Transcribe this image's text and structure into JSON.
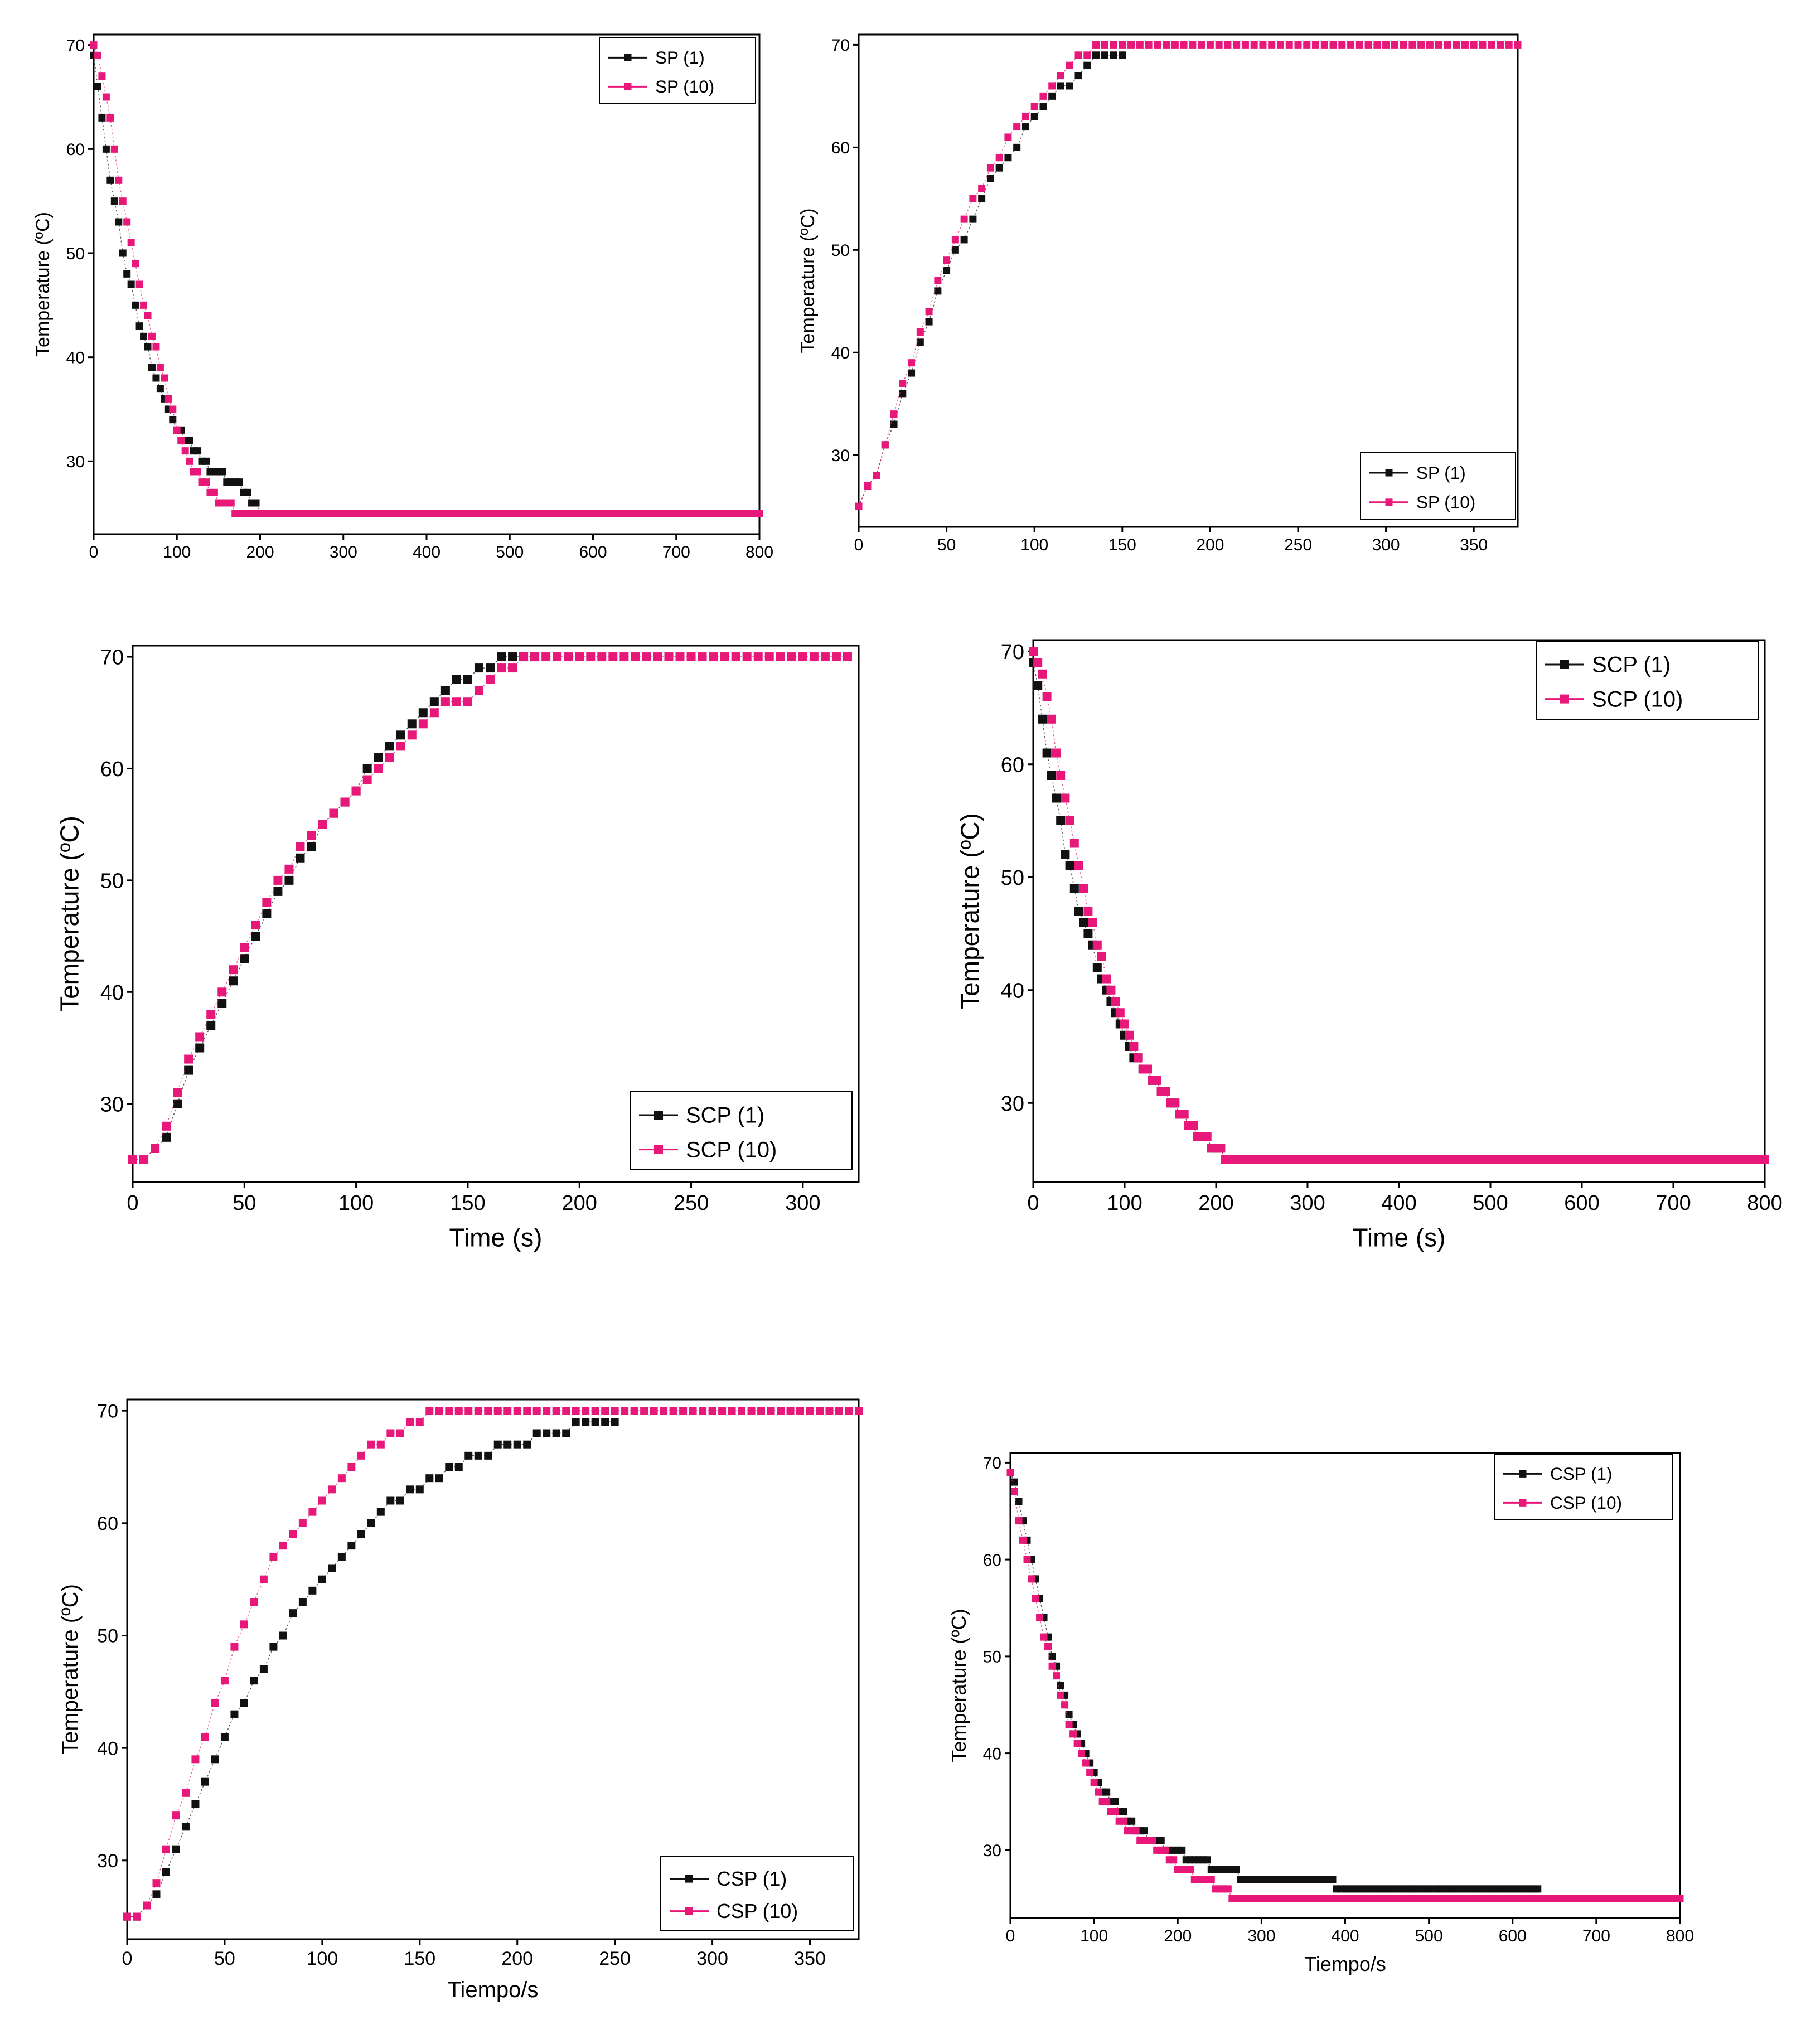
{
  "colors": {
    "black_series": "#111111",
    "pink_series": "#e8187a",
    "axis": "#000000",
    "plot_bg": "#ffffff"
  },
  "chart_data": [
    {
      "type": "scatter",
      "ylabel": "Temperature (ºC)",
      "xlabel": "",
      "xlim": [
        0,
        800
      ],
      "ylim": [
        23,
        71
      ],
      "xticks": [
        0,
        100,
        200,
        300,
        400,
        500,
        600,
        700,
        800
      ],
      "yticks": [
        30,
        40,
        50,
        60,
        70
      ],
      "legend_position": "top-right",
      "series": [
        {
          "name": "SP (1)",
          "color": "#111111",
          "step": 5,
          "hold_until": 800,
          "x": [
            0,
            5,
            10,
            15,
            20,
            25,
            30,
            35,
            40,
            45,
            50,
            55,
            60,
            70,
            80,
            90,
            100,
            110,
            120,
            130,
            140,
            150,
            160,
            170,
            180,
            190,
            200
          ],
          "y": [
            69,
            66,
            63,
            60,
            57,
            55,
            53,
            50,
            48,
            47,
            45,
            43,
            42,
            39,
            37,
            35,
            33,
            32,
            31,
            30,
            29,
            29,
            28,
            28,
            27,
            26,
            25
          ]
        },
        {
          "name": "SP (10)",
          "color": "#e8187a",
          "step": 5,
          "hold_until": 800,
          "x": [
            0,
            5,
            10,
            15,
            20,
            25,
            30,
            40,
            50,
            60,
            70,
            80,
            90,
            100,
            110,
            120,
            130,
            140,
            150,
            160,
            170
          ],
          "y": [
            70,
            69,
            67,
            65,
            63,
            60,
            57,
            53,
            49,
            45,
            42,
            39,
            36,
            33,
            31,
            29,
            28,
            27,
            26,
            26,
            25
          ]
        }
      ]
    },
    {
      "type": "scatter",
      "ylabel": "Temperature (ºC)",
      "xlabel": "",
      "xlim": [
        0,
        375
      ],
      "ylim": [
        23,
        71
      ],
      "xticks": [
        0,
        50,
        100,
        150,
        200,
        250,
        300,
        350
      ],
      "yticks": [
        30,
        40,
        50,
        60,
        70
      ],
      "legend_position": "bottom-right",
      "series": [
        {
          "name": "SP (1)",
          "color": "#111111",
          "step": 5,
          "hold_until": 150,
          "x": [
            0,
            10,
            20,
            30,
            40,
            50,
            60,
            70,
            80,
            90,
            100,
            110,
            120,
            130,
            140,
            150
          ],
          "y": [
            25,
            28,
            33,
            38,
            43,
            48,
            51,
            55,
            58,
            60,
            63,
            65,
            66,
            68,
            69,
            69
          ]
        },
        {
          "name": "SP (10)",
          "color": "#e8187a",
          "step": 5,
          "hold_until": 375,
          "x": [
            0,
            10,
            20,
            30,
            40,
            50,
            60,
            70,
            80,
            90,
            100,
            110,
            120,
            130,
            140
          ],
          "y": [
            25,
            28,
            34,
            39,
            44,
            49,
            53,
            56,
            59,
            62,
            64,
            66,
            68,
            69,
            70
          ]
        }
      ]
    },
    {
      "type": "scatter",
      "ylabel": "Temperature (ºC)",
      "xlabel": "Time (s)",
      "xlim": [
        0,
        325
      ],
      "ylim": [
        23,
        71
      ],
      "xticks": [
        0,
        50,
        100,
        150,
        200,
        250,
        300
      ],
      "yticks": [
        30,
        40,
        50,
        60,
        70
      ],
      "legend_position": "bottom-right",
      "series": [
        {
          "name": "SCP (1)",
          "color": "#111111",
          "step": 5,
          "hold_until": 180,
          "x": [
            0,
            5,
            10,
            15,
            20,
            30,
            40,
            50,
            60,
            70,
            80,
            90,
            100,
            110,
            120,
            130,
            140,
            150,
            160,
            170,
            180
          ],
          "y": [
            25,
            25,
            26,
            27,
            30,
            35,
            39,
            43,
            47,
            50,
            53,
            56,
            58,
            61,
            63,
            65,
            67,
            68,
            69,
            70,
            70
          ]
        },
        {
          "name": "SCP (10)",
          "color": "#e8187a",
          "step": 5,
          "hold_until": 320,
          "x": [
            0,
            5,
            10,
            15,
            20,
            30,
            40,
            50,
            60,
            70,
            80,
            90,
            100,
            110,
            120,
            130,
            140,
            150,
            160,
            170,
            180
          ],
          "y": [
            25,
            25,
            26,
            28,
            31,
            36,
            40,
            44,
            48,
            51,
            54,
            56,
            58,
            60,
            62,
            64,
            66,
            66,
            68,
            69,
            70
          ]
        }
      ]
    },
    {
      "type": "scatter",
      "ylabel": "Temperature (ºC)",
      "xlabel": "Time (s)",
      "xlim": [
        0,
        800
      ],
      "ylim": [
        23,
        71
      ],
      "xticks": [
        0,
        100,
        200,
        300,
        400,
        500,
        600,
        700,
        800
      ],
      "yticks": [
        30,
        40,
        50,
        60,
        70
      ],
      "legend_position": "top-right",
      "series": [
        {
          "name": "SCP (1)",
          "color": "#111111",
          "step": 5,
          "hold_until": 800,
          "x": [
            0,
            5,
            10,
            15,
            20,
            25,
            30,
            35,
            40,
            45,
            50,
            60,
            70,
            80,
            90,
            100,
            110,
            120,
            140,
            160,
            180,
            200,
            210
          ],
          "y": [
            69,
            67,
            64,
            61,
            59,
            57,
            55,
            52,
            51,
            49,
            47,
            45,
            42,
            40,
            38,
            36,
            34,
            33,
            31,
            29,
            27,
            26,
            25
          ]
        },
        {
          "name": "SCP (10)",
          "color": "#e8187a",
          "step": 5,
          "hold_until": 800,
          "x": [
            0,
            5,
            10,
            15,
            20,
            25,
            30,
            35,
            40,
            45,
            50,
            60,
            70,
            80,
            90,
            100,
            110,
            120,
            140,
            160,
            180,
            200,
            210
          ],
          "y": [
            70,
            69,
            68,
            66,
            64,
            61,
            59,
            57,
            55,
            53,
            51,
            47,
            44,
            41,
            39,
            37,
            35,
            33,
            31,
            29,
            27,
            26,
            25
          ]
        }
      ]
    },
    {
      "type": "scatter",
      "ylabel": "Temperature (ºC)",
      "xlabel": "Tiempo/s",
      "xlim": [
        0,
        375
      ],
      "ylim": [
        23,
        71
      ],
      "xticks": [
        0,
        50,
        100,
        150,
        200,
        250,
        300,
        350
      ],
      "yticks": [
        30,
        40,
        50,
        60,
        70
      ],
      "legend_position": "bottom-right",
      "series": [
        {
          "name": "CSP (1)",
          "color": "#111111",
          "step": 5,
          "hold_until": 250,
          "x": [
            0,
            5,
            10,
            15,
            20,
            30,
            40,
            50,
            60,
            70,
            80,
            90,
            100,
            110,
            120,
            130,
            140,
            150,
            160,
            170,
            180,
            200,
            220,
            240,
            250
          ],
          "y": [
            25,
            25,
            26,
            27,
            29,
            33,
            37,
            41,
            44,
            47,
            50,
            53,
            55,
            57,
            59,
            61,
            62,
            63,
            64,
            65,
            66,
            67,
            68,
            69,
            69
          ]
        },
        {
          "name": "CSP (10)",
          "color": "#e8187a",
          "step": 5,
          "hold_until": 375,
          "x": [
            0,
            5,
            10,
            15,
            20,
            30,
            40,
            50,
            60,
            70,
            80,
            90,
            100,
            110,
            120,
            130,
            140,
            150,
            155
          ],
          "y": [
            25,
            25,
            26,
            28,
            31,
            36,
            41,
            46,
            51,
            55,
            58,
            60,
            62,
            64,
            66,
            67,
            68,
            69,
            70
          ]
        }
      ]
    },
    {
      "type": "scatter",
      "ylabel": "Temperature (ºC)",
      "xlabel": "Tiempo/s",
      "xlim": [
        0,
        800
      ],
      "ylim": [
        23,
        71
      ],
      "xticks": [
        0,
        100,
        200,
        300,
        400,
        500,
        600,
        700,
        800
      ],
      "yticks": [
        30,
        40,
        50,
        60,
        70
      ],
      "legend_position": "top-right",
      "series": [
        {
          "name": "CSP (1)",
          "color": "#111111",
          "step": 5,
          "hold_until": 630,
          "x": [
            0,
            5,
            10,
            15,
            20,
            30,
            40,
            50,
            60,
            70,
            80,
            90,
            100,
            110,
            120,
            130,
            140,
            150,
            170,
            190,
            220,
            250,
            290,
            350,
            420,
            500,
            630
          ],
          "y": [
            69,
            68,
            66,
            64,
            62,
            58,
            54,
            50,
            47,
            44,
            42,
            40,
            38,
            36,
            35,
            34,
            33,
            32,
            31,
            30,
            29,
            28,
            27,
            27,
            26,
            26,
            26
          ]
        },
        {
          "name": "CSP (10)",
          "color": "#e8187a",
          "step": 5,
          "hold_until": 800,
          "x": [
            0,
            5,
            10,
            15,
            20,
            30,
            40,
            50,
            60,
            70,
            80,
            90,
            100,
            110,
            120,
            140,
            160,
            180,
            200,
            230,
            270
          ],
          "y": [
            69,
            67,
            64,
            62,
            60,
            56,
            52,
            49,
            46,
            43,
            41,
            39,
            37,
            35,
            34,
            32,
            31,
            30,
            28,
            27,
            25
          ]
        }
      ]
    }
  ]
}
